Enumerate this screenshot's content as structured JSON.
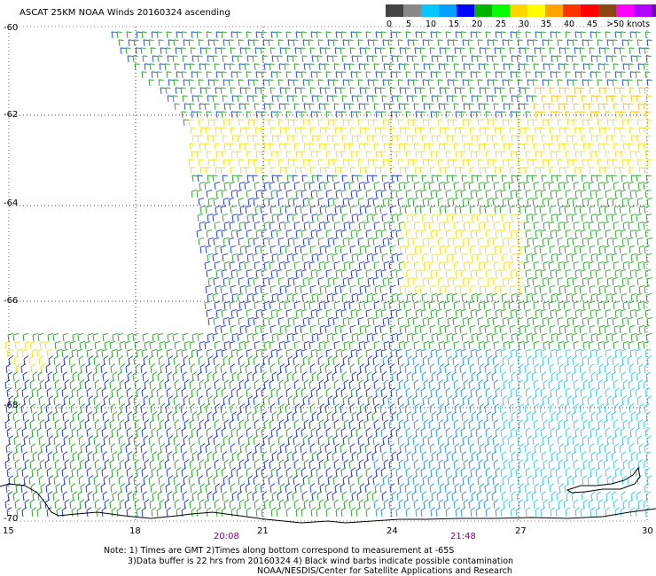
{
  "title": "ASCAT 25KM NOAA Winds 20160324 ascending",
  "legend": {
    "labels": [
      "0",
      "5",
      "10",
      "15",
      "20",
      "25",
      "30",
      "35",
      "40",
      "45",
      ">50 knots"
    ],
    "colors": [
      "#444444",
      "#888888",
      "#00c8ff",
      "#00a0ff",
      "#0000ff",
      "#00b400",
      "#00ff00",
      "#ffd700",
      "#ffff00",
      "#ffa500",
      "#ff3200",
      "#ff0000",
      "#8b4513",
      "#ff00ff",
      "#b400ff",
      "#6a0dad"
    ]
  },
  "lat_labels": [
    "-60",
    "-62",
    "-64",
    "-66",
    "-68",
    "-70"
  ],
  "lon_labels": [
    "15",
    "18",
    "21",
    "24",
    "27",
    "30"
  ],
  "time_labels": [
    "20:08",
    "21:48"
  ],
  "notes": {
    "line1": "Note: 1) Times are GMT 2)Times along bottom correspond to measurement at -65S",
    "line2": "3)Data buffer is 22 hrs from 20160324 4) Black wind barbs indicate possible contamination",
    "line3": "NOAA/NESDIS/Center for Satellite Applications and Research"
  }
}
